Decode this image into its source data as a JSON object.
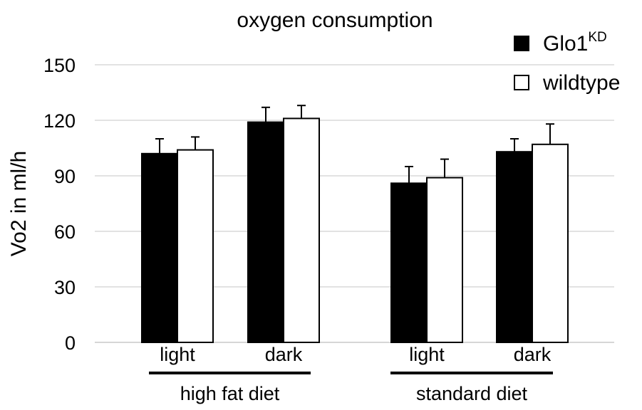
{
  "chart_data": {
    "type": "bar",
    "title": "oxygen consumption",
    "ylabel": "Vo2 in ml/h",
    "xlabel": "",
    "ylim": [
      0,
      150
    ],
    "yticks": [
      0,
      30,
      60,
      90,
      120,
      150
    ],
    "grid": true,
    "legend_position": "top-right",
    "groups": [
      {
        "label": "high fat diet",
        "categories": [
          "light",
          "dark"
        ]
      },
      {
        "label": "standard diet",
        "categories": [
          "light",
          "dark"
        ]
      }
    ],
    "categories": [
      "light",
      "dark",
      "light",
      "dark"
    ],
    "series": [
      {
        "name": "Glo1",
        "name_superscript": "KD",
        "color": "#000000",
        "values": [
          102,
          119,
          86,
          103
        ],
        "errors": [
          8,
          8,
          9,
          7
        ]
      },
      {
        "name": "wildtype",
        "color": "#ffffff",
        "values": [
          104,
          121,
          89,
          107
        ],
        "errors": [
          7,
          7,
          10,
          11
        ]
      }
    ]
  }
}
